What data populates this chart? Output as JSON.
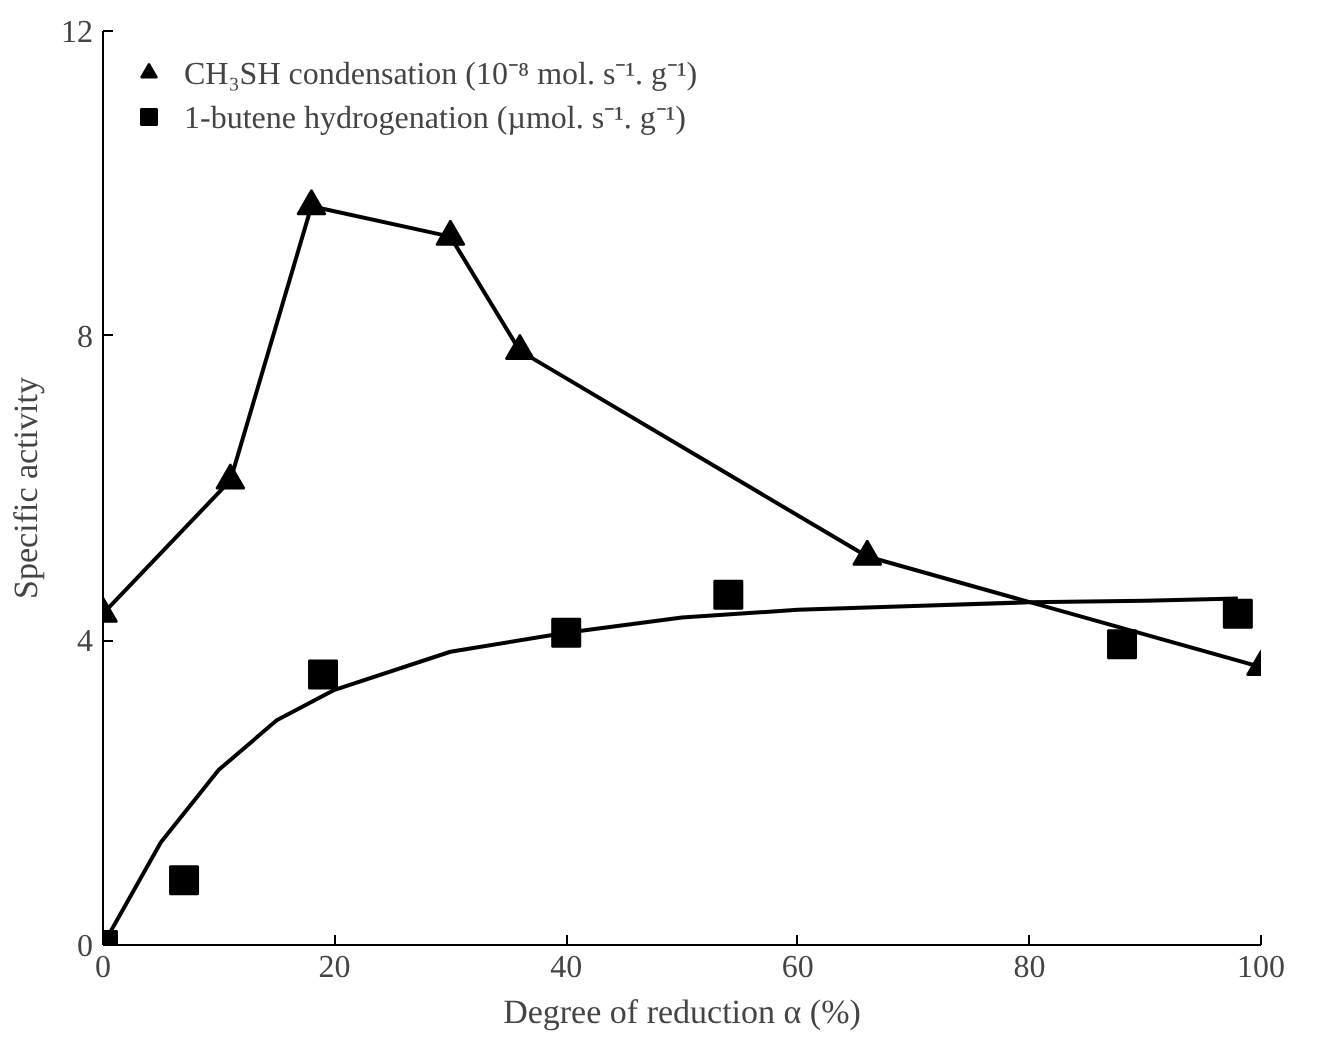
{
  "chart_data": {
    "type": "line",
    "xlabel": "Degree of reduction α (%)",
    "ylabel": "Specific activity",
    "xlim": [
      0,
      100
    ],
    "ylim": [
      0,
      12
    ],
    "xticks": [
      0,
      20,
      40,
      60,
      80,
      100
    ],
    "yticks": [
      0,
      4,
      8,
      12
    ],
    "grid": false,
    "legend": "top left",
    "series": [
      {
        "name": "CH₃SH condensation (10⁻⁸ mol. s⁻¹. g⁻¹)",
        "color": "#000000",
        "type": "line",
        "marker": "triangle",
        "x": [
          0,
          11,
          18,
          30,
          36,
          66,
          100
        ],
        "values": [
          4.35,
          6.1,
          9.7,
          9.3,
          7.8,
          5.1,
          3.65
        ]
      },
      {
        "name": "1-butene hydrogenation (µmol. s⁻¹. g⁻¹)",
        "color": "#000000",
        "type": "scatter",
        "marker": "square",
        "x": [
          0,
          7,
          19,
          40,
          54,
          88,
          98
        ],
        "values": [
          0,
          0.85,
          3.55,
          4.1,
          4.6,
          3.95,
          4.35
        ]
      },
      {
        "color": "#000000",
        "marker": "none",
        "x": [
          0,
          5,
          10,
          15,
          20,
          30,
          40,
          50,
          60,
          70,
          80,
          90,
          98
        ],
        "values": [
          0,
          1.35,
          2.3,
          2.95,
          3.35,
          3.85,
          4.1,
          4.3,
          4.4,
          4.45,
          4.5,
          4.52,
          4.55
        ]
      }
    ]
  }
}
